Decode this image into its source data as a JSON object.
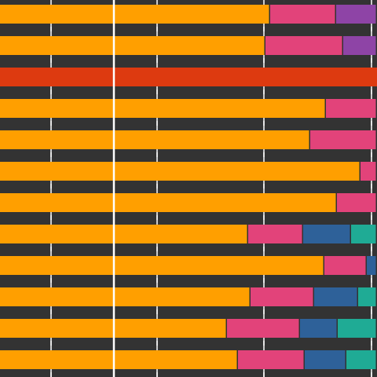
{
  "chart_data": {
    "type": "bar",
    "orientation": "horizontal",
    "stacked": true,
    "title": "",
    "xlabel": "",
    "ylabel": "",
    "grid": true,
    "background": "#333333",
    "xlim": [
      0,
      480
    ],
    "reference_line_x": 145,
    "row_count": 12,
    "highlight_row": 2,
    "highlight_color": "#DD3A10",
    "series": [
      {
        "color": "#FF9F00",
        "values": [
          344,
          338,
          145,
          415,
          395,
          459,
          429,
          316,
          413,
          319,
          289,
          303
        ]
      },
      {
        "color": "#E2437A",
        "values": [
          84,
          99,
          0,
          65,
          85,
          21,
          51,
          70,
          54,
          81,
          93,
          85
        ]
      },
      {
        "color": "#8E44A6",
        "values": [
          52,
          43,
          0,
          0,
          0,
          0,
          0,
          0,
          0,
          0,
          0,
          0
        ]
      },
      {
        "color": "#2E6199",
        "values": [
          0,
          0,
          0,
          0,
          0,
          0,
          0,
          61,
          13,
          56,
          48,
          53
        ]
      },
      {
        "color": "#1FAB95",
        "values": [
          0,
          0,
          0,
          0,
          0,
          0,
          0,
          33,
          0,
          24,
          50,
          39
        ]
      }
    ]
  }
}
